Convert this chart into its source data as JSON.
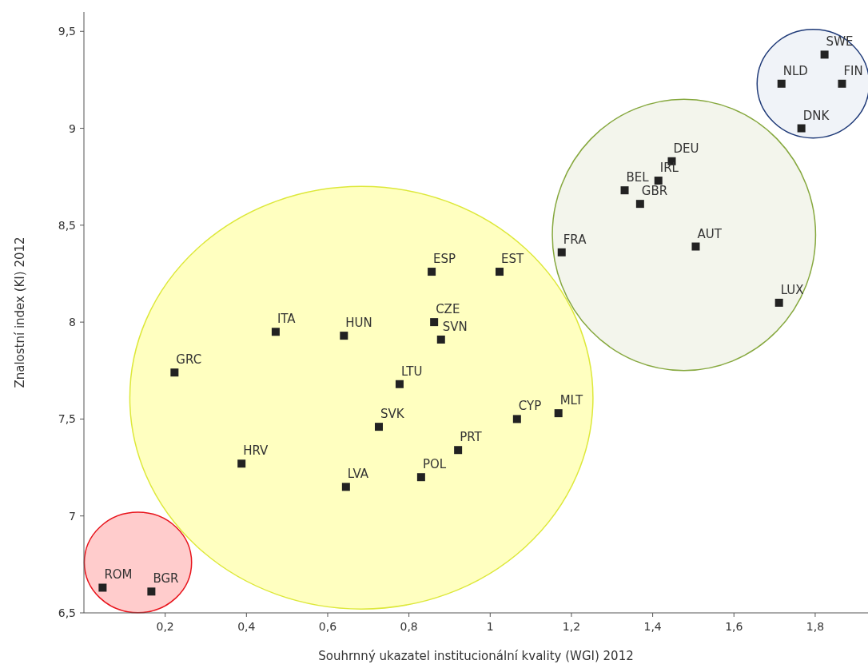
{
  "chart_data": {
    "type": "scatter",
    "xlabel": "Souhrnný ukazatel institucionální kvality (WGI) 2012",
    "ylabel": "Znalostní index (KI) 2012",
    "xlim": [
      0,
      1.93
    ],
    "ylim": [
      6.5,
      9.6
    ],
    "xticks": [
      {
        "value": 0.2,
        "label": "0,2"
      },
      {
        "value": 0.4,
        "label": "0,4"
      },
      {
        "value": 0.6,
        "label": "0,6"
      },
      {
        "value": 0.8,
        "label": "0,8"
      },
      1,
      {
        "value": 1.2,
        "label": "1,2"
      },
      {
        "value": 1.4,
        "label": "1,4"
      },
      {
        "value": 1.6,
        "label": "1,6"
      },
      {
        "value": 1.8,
        "label": "1,8"
      }
    ],
    "yticks": [
      {
        "value": 6.5,
        "label": "6,5"
      },
      7,
      {
        "value": 7.5,
        "label": "7,5"
      },
      8,
      {
        "value": 8.5,
        "label": "8,5"
      },
      9,
      {
        "value": 9.5,
        "label": "9,5"
      }
    ],
    "marker": "square",
    "grid": false,
    "series": [
      {
        "color": "#222222",
        "x": [
          0.046,
          0.166,
          0.223,
          0.388,
          0.472,
          0.64,
          0.645,
          0.726,
          0.777,
          0.83,
          0.856,
          0.862,
          0.879,
          0.921,
          1.023,
          1.066,
          1.168,
          1.176,
          1.331,
          1.369,
          1.414,
          1.447,
          1.506,
          1.711,
          1.717,
          1.766,
          1.823,
          1.866
        ],
        "values": [
          6.63,
          6.61,
          7.74,
          7.27,
          7.95,
          7.93,
          7.15,
          7.46,
          7.68,
          7.2,
          8.26,
          8.0,
          7.91,
          7.34,
          8.26,
          7.5,
          7.53,
          8.36,
          8.68,
          8.61,
          8.73,
          8.83,
          8.39,
          8.1,
          9.23,
          9.0,
          9.38,
          9.23
        ]
      }
    ],
    "annotations": [
      {
        "text": "ROM",
        "x": 0.046,
        "y": 6.63
      },
      {
        "text": "BGR",
        "x": 0.166,
        "y": 6.61
      },
      {
        "text": "GRC",
        "x": 0.223,
        "y": 7.74
      },
      {
        "text": "HRV",
        "x": 0.388,
        "y": 7.27
      },
      {
        "text": "ITA",
        "x": 0.472,
        "y": 7.95
      },
      {
        "text": "HUN",
        "x": 0.64,
        "y": 7.93
      },
      {
        "text": "LVA",
        "x": 0.645,
        "y": 7.15
      },
      {
        "text": "SVK",
        "x": 0.726,
        "y": 7.46
      },
      {
        "text": "LTU",
        "x": 0.777,
        "y": 7.68
      },
      {
        "text": "POL",
        "x": 0.83,
        "y": 7.2
      },
      {
        "text": "ESP",
        "x": 0.856,
        "y": 8.26
      },
      {
        "text": "CZE",
        "x": 0.862,
        "y": 8.0
      },
      {
        "text": "SVN",
        "x": 0.879,
        "y": 7.91
      },
      {
        "text": "PRT",
        "x": 0.921,
        "y": 7.34
      },
      {
        "text": "EST",
        "x": 1.023,
        "y": 8.26
      },
      {
        "text": "CYP",
        "x": 1.066,
        "y": 7.5
      },
      {
        "text": "MLT",
        "x": 1.168,
        "y": 7.53
      },
      {
        "text": "FRA",
        "x": 1.176,
        "y": 8.36
      },
      {
        "text": "BEL",
        "x": 1.331,
        "y": 8.68
      },
      {
        "text": "GBR",
        "x": 1.369,
        "y": 8.61
      },
      {
        "text": "IRL",
        "x": 1.414,
        "y": 8.73
      },
      {
        "text": "DEU",
        "x": 1.447,
        "y": 8.83
      },
      {
        "text": "AUT",
        "x": 1.506,
        "y": 8.39
      },
      {
        "text": "LUX",
        "x": 1.711,
        "y": 8.1
      },
      {
        "text": "NLD",
        "x": 1.717,
        "y": 9.23
      },
      {
        "text": "DNK",
        "x": 1.766,
        "y": 9.0
      },
      {
        "text": "SWE",
        "x": 1.823,
        "y": 9.38
      },
      {
        "text": "FIN",
        "x": 1.866,
        "y": 9.23
      }
    ]
  }
}
